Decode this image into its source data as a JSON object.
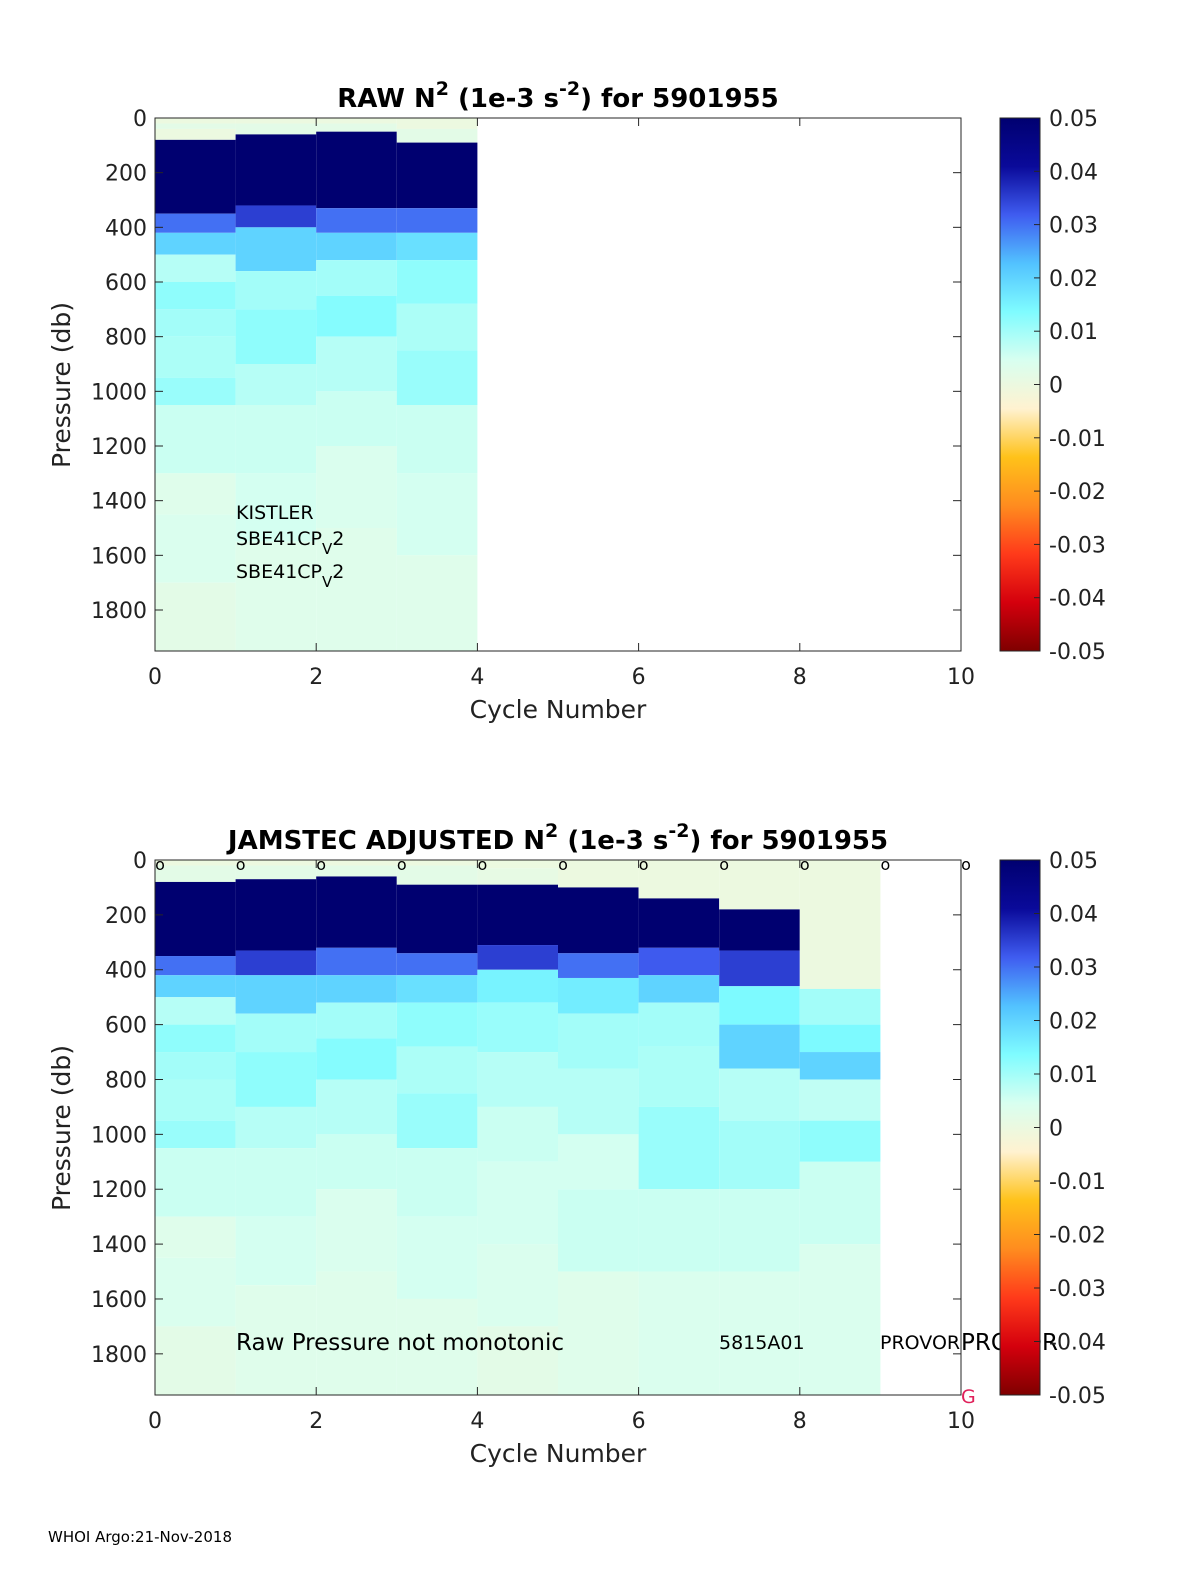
{
  "footer": "WHOI Argo:21-Nov-2018",
  "colormap": [
    "#7f0000",
    "#d4000d",
    "#ff3a1a",
    "#ff8c1f",
    "#ffc21a",
    "#fff2d0",
    "#d8fff0",
    "#7ffcff",
    "#52c2ff",
    "#3f5cf0",
    "#0a0a9a",
    "#000070"
  ],
  "chart_data": [
    {
      "type": "heatmap",
      "title_parts": {
        "pre": "RAW N",
        "sup1": "2",
        "mid": " (1e-3 s",
        "sup2": "-2",
        "post": ") for 5901955"
      },
      "xlabel": "Cycle Number",
      "ylabel": "Pressure (db)",
      "xlim": [
        0,
        10
      ],
      "ylim": [
        1950,
        0
      ],
      "xticks": [
        "0",
        "2",
        "4",
        "6",
        "8",
        "10"
      ],
      "yticks": [
        "0",
        "200",
        "400",
        "600",
        "800",
        "1000",
        "1200",
        "1400",
        "1600",
        "1800"
      ],
      "colorbar": {
        "ticks": [
          "0.05",
          "0.04",
          "0.03",
          "0.02",
          "0.01",
          "0",
          "-0.01",
          "-0.02",
          "-0.03",
          "-0.04",
          "-0.05"
        ],
        "clim": [
          -0.05,
          0.05
        ]
      },
      "grid": false,
      "columns": [
        {
          "cycle": 0,
          "bands": [
            [
              0,
              20,
              0.0
            ],
            [
              20,
              40,
              0.002
            ],
            [
              40,
              80,
              0.0
            ],
            [
              80,
              350,
              0.05
            ],
            [
              350,
              420,
              0.03
            ],
            [
              420,
              500,
              0.02
            ],
            [
              500,
              600,
              0.008
            ],
            [
              600,
              700,
              0.012
            ],
            [
              700,
              800,
              0.01
            ],
            [
              800,
              950,
              0.009
            ],
            [
              950,
              1050,
              0.011
            ],
            [
              1050,
              1300,
              0.006
            ],
            [
              1300,
              1450,
              0.003
            ],
            [
              1450,
              1700,
              0.004
            ],
            [
              1700,
              1950,
              0.002
            ]
          ]
        },
        {
          "cycle": 1,
          "bands": [
            [
              0,
              20,
              0.0
            ],
            [
              20,
              60,
              0.002
            ],
            [
              60,
              320,
              0.05
            ],
            [
              320,
              400,
              0.035
            ],
            [
              400,
              560,
              0.02
            ],
            [
              560,
              700,
              0.01
            ],
            [
              700,
              900,
              0.012
            ],
            [
              900,
              1050,
              0.008
            ],
            [
              1050,
              1300,
              0.006
            ],
            [
              1300,
              1550,
              0.005
            ],
            [
              1550,
              1950,
              0.003
            ]
          ]
        },
        {
          "cycle": 2,
          "bands": [
            [
              0,
              20,
              0.0
            ],
            [
              20,
              50,
              0.002
            ],
            [
              50,
              330,
              0.05
            ],
            [
              330,
              420,
              0.03
            ],
            [
              420,
              520,
              0.02
            ],
            [
              520,
              650,
              0.01
            ],
            [
              650,
              800,
              0.013
            ],
            [
              800,
              1000,
              0.008
            ],
            [
              1000,
              1200,
              0.006
            ],
            [
              1200,
              1500,
              0.004
            ],
            [
              1500,
              1950,
              0.003
            ]
          ]
        },
        {
          "cycle": 3,
          "bands": [
            [
              0,
              40,
              0.0
            ],
            [
              40,
              90,
              0.002
            ],
            [
              90,
              330,
              0.05
            ],
            [
              330,
              420,
              0.03
            ],
            [
              420,
              520,
              0.018
            ],
            [
              520,
              680,
              0.012
            ],
            [
              680,
              850,
              0.009
            ],
            [
              850,
              1050,
              0.011
            ],
            [
              1050,
              1300,
              0.006
            ],
            [
              1300,
              1600,
              0.005
            ],
            [
              1600,
              1950,
              0.003
            ]
          ]
        }
      ],
      "annotations": [
        "KISTLER",
        "SBE41CP",
        "V",
        "2",
        "SBE41CP",
        "V",
        "2"
      ]
    },
    {
      "type": "heatmap",
      "title_parts": {
        "pre": "JAMSTEC  ADJUSTED N",
        "sup1": "2",
        "mid": " (1e-3 s",
        "sup2": "-2",
        "post": ") for 5901955"
      },
      "xlabel": "Cycle Number",
      "ylabel": "Pressure (db)",
      "xlim": [
        0,
        10
      ],
      "ylim": [
        1950,
        0
      ],
      "xticks": [
        "0",
        "2",
        "4",
        "6",
        "8",
        "10"
      ],
      "yticks": [
        "0",
        "200",
        "400",
        "600",
        "800",
        "1000",
        "1200",
        "1400",
        "1600",
        "1800"
      ],
      "colorbar": {
        "ticks": [
          "0.05",
          "0.04",
          "0.03",
          "0.02",
          "0.01",
          "0",
          "-0.01",
          "-0.02",
          "-0.03",
          "-0.04",
          "-0.05"
        ],
        "clim": [
          -0.05,
          0.05
        ]
      },
      "grid": false,
      "markers": [
        "o",
        "o",
        "o",
        "o",
        "o",
        "o",
        "o",
        "o",
        "o",
        "o",
        "o"
      ],
      "columns": [
        {
          "cycle": 0,
          "bands": [
            [
              0,
              20,
              0.0
            ],
            [
              20,
              80,
              0.002
            ],
            [
              80,
              350,
              0.05
            ],
            [
              350,
              420,
              0.03
            ],
            [
              420,
              500,
              0.02
            ],
            [
              500,
              600,
              0.008
            ],
            [
              600,
              700,
              0.012
            ],
            [
              700,
              800,
              0.01
            ],
            [
              800,
              950,
              0.009
            ],
            [
              950,
              1050,
              0.011
            ],
            [
              1050,
              1300,
              0.006
            ],
            [
              1300,
              1450,
              0.003
            ],
            [
              1450,
              1700,
              0.004
            ],
            [
              1700,
              1950,
              0.002
            ]
          ]
        },
        {
          "cycle": 1,
          "bands": [
            [
              0,
              20,
              0.0
            ],
            [
              20,
              70,
              0.002
            ],
            [
              70,
              330,
              0.05
            ],
            [
              330,
              420,
              0.035
            ],
            [
              420,
              560,
              0.02
            ],
            [
              560,
              700,
              0.01
            ],
            [
              700,
              900,
              0.012
            ],
            [
              900,
              1050,
              0.008
            ],
            [
              1050,
              1300,
              0.006
            ],
            [
              1300,
              1550,
              0.005
            ],
            [
              1550,
              1950,
              0.003
            ]
          ]
        },
        {
          "cycle": 2,
          "bands": [
            [
              0,
              20,
              0.0
            ],
            [
              20,
              60,
              0.002
            ],
            [
              60,
              320,
              0.05
            ],
            [
              320,
              420,
              0.03
            ],
            [
              420,
              520,
              0.02
            ],
            [
              520,
              650,
              0.01
            ],
            [
              650,
              800,
              0.013
            ],
            [
              800,
              1000,
              0.008
            ],
            [
              1000,
              1200,
              0.006
            ],
            [
              1200,
              1500,
              0.004
            ],
            [
              1500,
              1950,
              0.003
            ]
          ]
        },
        {
          "cycle": 3,
          "bands": [
            [
              0,
              20,
              0.0
            ],
            [
              20,
              90,
              0.002
            ],
            [
              90,
              340,
              0.05
            ],
            [
              340,
              420,
              0.03
            ],
            [
              420,
              520,
              0.018
            ],
            [
              520,
              680,
              0.012
            ],
            [
              680,
              850,
              0.009
            ],
            [
              850,
              1050,
              0.011
            ],
            [
              1050,
              1300,
              0.006
            ],
            [
              1300,
              1600,
              0.005
            ],
            [
              1600,
              1950,
              0.003
            ]
          ]
        },
        {
          "cycle": 4,
          "bands": [
            [
              0,
              30,
              0.0
            ],
            [
              30,
              90,
              0.001
            ],
            [
              90,
              310,
              0.05
            ],
            [
              310,
              400,
              0.035
            ],
            [
              400,
              520,
              0.015
            ],
            [
              520,
              700,
              0.011
            ],
            [
              700,
              900,
              0.008
            ],
            [
              900,
              1100,
              0.006
            ],
            [
              1100,
              1400,
              0.005
            ],
            [
              1400,
              1700,
              0.004
            ],
            [
              1700,
              1950,
              0.002
            ]
          ]
        },
        {
          "cycle": 5,
          "bands": [
            [
              0,
              100,
              0.0
            ],
            [
              100,
              340,
              0.05
            ],
            [
              340,
              430,
              0.03
            ],
            [
              430,
              560,
              0.016
            ],
            [
              560,
              760,
              0.01
            ],
            [
              760,
              1000,
              0.008
            ],
            [
              1000,
              1200,
              0.005
            ],
            [
              1200,
              1500,
              0.006
            ],
            [
              1500,
              1950,
              0.003
            ]
          ]
        },
        {
          "cycle": 6,
          "bands": [
            [
              0,
              140,
              0.0
            ],
            [
              140,
              320,
              0.05
            ],
            [
              320,
              420,
              0.032
            ],
            [
              420,
              520,
              0.02
            ],
            [
              520,
              680,
              0.01
            ],
            [
              680,
              900,
              0.009
            ],
            [
              900,
              1200,
              0.011
            ],
            [
              1200,
              1500,
              0.006
            ],
            [
              1500,
              1950,
              0.004
            ]
          ]
        },
        {
          "cycle": 7,
          "bands": [
            [
              0,
              180,
              0.0
            ],
            [
              180,
              330,
              0.05
            ],
            [
              330,
              460,
              0.035
            ],
            [
              460,
              600,
              0.014
            ],
            [
              600,
              760,
              0.02
            ],
            [
              760,
              950,
              0.008
            ],
            [
              950,
              1200,
              0.01
            ],
            [
              1200,
              1500,
              0.006
            ],
            [
              1500,
              1950,
              0.004
            ]
          ]
        },
        {
          "cycle": 8,
          "bands": [
            [
              0,
              470,
              0.0
            ],
            [
              470,
              600,
              0.01
            ],
            [
              600,
              700,
              0.014
            ],
            [
              700,
              800,
              0.02
            ],
            [
              800,
              950,
              0.007
            ],
            [
              950,
              1100,
              0.012
            ],
            [
              1100,
              1400,
              0.006
            ],
            [
              1400,
              1950,
              0.004
            ]
          ]
        }
      ],
      "annotations": [
        "Raw Pressure not monotonic",
        "5815A01",
        "PROVOR",
        "PROVOR",
        "G"
      ]
    }
  ]
}
